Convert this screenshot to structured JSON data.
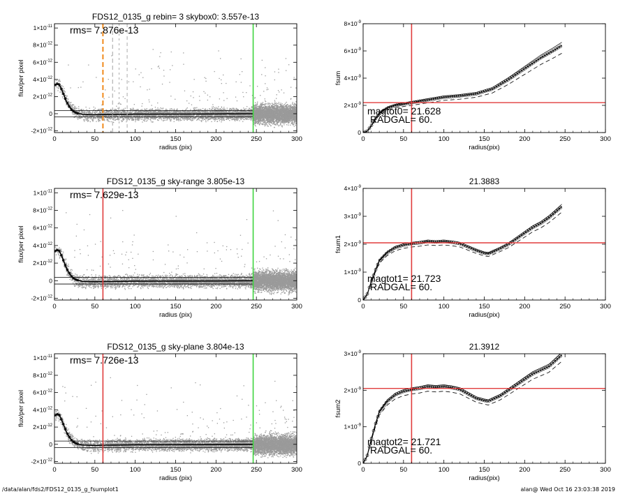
{
  "colors": {
    "data": "#000000",
    "scatter": "#9a9a9a",
    "red": "#e03c3c",
    "orange": "#f08a1c",
    "green": "#3ed53e"
  },
  "footer": {
    "left": "/data/alan/fds2/FDS12_0135_g_fsumplot1",
    "right": "alan@  Wed Oct 16 23:03:38 2019"
  },
  "chart_data": [
    {
      "type": "scatter",
      "title": "FDS12_0135_g rebin= 3    skybox0:  3.557e-13",
      "annotation": "rms= 7.876e-13",
      "xlabel": "radius (pix)",
      "ylabel": "flux/per pixel",
      "xlim": [
        0,
        300
      ],
      "ylim": [
        -2.2e-12,
        1.05e-11
      ],
      "xticks": [
        "0",
        "50",
        "100",
        "150",
        "200",
        "250",
        "300"
      ],
      "yticks": [
        {
          "v": -2e-12,
          "m": "-2",
          "e": "-12"
        },
        {
          "v": 0,
          "m": "0",
          "e": ""
        },
        {
          "v": 2e-12,
          "m": "2",
          "e": "-12"
        },
        {
          "v": 4e-12,
          "m": "4",
          "e": "-12"
        },
        {
          "v": 6e-12,
          "m": "6",
          "e": "-12"
        },
        {
          "v": 8e-12,
          "m": "8",
          "e": "-12"
        },
        {
          "v": 1e-11,
          "m": "1",
          "e": "-11"
        }
      ],
      "yformat": "x10",
      "profile": {
        "x": [
          0,
          3,
          6,
          9,
          12,
          15,
          18,
          21,
          24,
          27,
          30,
          35,
          40,
          50,
          60,
          80,
          100,
          150,
          200,
          246
        ],
        "y": [
          3.3e-12,
          3.5e-12,
          3.4e-12,
          2.8e-12,
          2.1e-12,
          1.4e-12,
          9e-13,
          5e-13,
          2.5e-13,
          1e-13,
          2e-14,
          -8e-14,
          -1e-13,
          -1.2e-13,
          -1e-13,
          -8e-14,
          -5e-14,
          -4e-14,
          -3e-14,
          0
        ]
      },
      "hlines": [
        3.557e-13,
        -3.557e-13
      ],
      "vlines": [
        {
          "x": 60,
          "color": "#f08a1c",
          "dash": "7,4",
          "width": 2
        },
        {
          "x": 72,
          "color": "#b8b8b8",
          "dash": "6,4",
          "width": 1.3
        },
        {
          "x": 80,
          "color": "#b8b8b8",
          "dash": "3,4",
          "width": 1.2
        },
        {
          "x": 90,
          "color": "#b8b8b8",
          "dash": "5,4",
          "width": 1.2
        },
        {
          "x": 246,
          "color": "#3ed53e",
          "dash": "",
          "width": 1.6
        }
      ],
      "scatter_seed": 11
    },
    {
      "type": "line",
      "title": "",
      "annotation": [
        "magtot0=  21.628",
        "RADGAL=    60."
      ],
      "xlabel": "radius(pix)",
      "ylabel": "fsum",
      "xlim": [
        0,
        300
      ],
      "ylim": [
        0,
        8e-09
      ],
      "xticks": [
        "0",
        "50",
        "100",
        "150",
        "200",
        "250",
        "300"
      ],
      "yticks": [
        {
          "v": 0,
          "m": "0",
          "e": ""
        },
        {
          "v": 2e-09,
          "m": "2",
          "e": "-9"
        },
        {
          "v": 4e-09,
          "m": "4",
          "e": "-9"
        },
        {
          "v": 6e-09,
          "m": "6",
          "e": "-9"
        },
        {
          "v": 8e-09,
          "m": "8",
          "e": "-9"
        }
      ],
      "yformat": "x10",
      "series": [
        {
          "x": [
            0,
            5,
            10,
            15,
            20,
            30,
            40,
            50,
            60,
            80,
            100,
            120,
            140,
            160,
            180,
            200,
            220,
            235,
            246
          ],
          "y": [
            0,
            1e-10,
            5e-10,
            1e-09,
            1.4e-09,
            1.8e-09,
            2e-09,
            2.1e-09,
            2.2e-09,
            2.4e-09,
            2.6e-09,
            2.7e-09,
            2.85e-09,
            3.2e-09,
            3.9e-09,
            4.7e-09,
            5.5e-09,
            6e-09,
            6.4e-09
          ]
        }
      ],
      "band": 0.09,
      "hline": 2.2e-09,
      "vline": 60
    },
    {
      "type": "scatter",
      "title": "FDS12_0135_g sky-range  3.805e-13",
      "annotation": "rms= 7.629e-13",
      "xlabel": "radius (pix)",
      "ylabel": "flux/per pixel",
      "xlim": [
        0,
        300
      ],
      "ylim": [
        -2.2e-12,
        1.05e-11
      ],
      "xticks": [
        "0",
        "50",
        "100",
        "150",
        "200",
        "250",
        "300"
      ],
      "yticks": [
        {
          "v": -2e-12,
          "m": "-2",
          "e": "-12"
        },
        {
          "v": 0,
          "m": "0",
          "e": ""
        },
        {
          "v": 2e-12,
          "m": "2",
          "e": "-12"
        },
        {
          "v": 4e-12,
          "m": "4",
          "e": "-12"
        },
        {
          "v": 6e-12,
          "m": "6",
          "e": "-12"
        },
        {
          "v": 8e-12,
          "m": "8",
          "e": "-12"
        },
        {
          "v": 1e-11,
          "m": "1",
          "e": "-11"
        }
      ],
      "yformat": "x10",
      "profile": {
        "x": [
          0,
          3,
          6,
          9,
          12,
          15,
          18,
          21,
          24,
          27,
          30,
          35,
          40,
          50,
          60,
          80,
          100,
          150,
          200,
          246
        ],
        "y": [
          3.3e-12,
          3.5e-12,
          3.4e-12,
          2.8e-12,
          2.1e-12,
          1.4e-12,
          9e-13,
          5e-13,
          2.5e-13,
          1e-13,
          2e-14,
          -8e-14,
          -1e-13,
          -1.2e-13,
          -1e-13,
          -8e-14,
          -5e-14,
          -4e-14,
          -3e-14,
          0
        ]
      },
      "hlines": [
        3.805e-13,
        -3.805e-13
      ],
      "vlines": [
        {
          "x": 60,
          "color": "#e03c3c",
          "dash": "",
          "width": 1.6
        },
        {
          "x": 246,
          "color": "#3ed53e",
          "dash": "",
          "width": 1.6
        }
      ],
      "scatter_seed": 23
    },
    {
      "type": "line",
      "title": "21.3883",
      "annotation": [
        "magtot1=  21.723",
        "RADGAL=    60."
      ],
      "xlabel": "radius(pix)",
      "ylabel": "fsum1",
      "xlim": [
        0,
        300
      ],
      "ylim": [
        0,
        4e-09
      ],
      "xticks": [
        "0",
        "50",
        "100",
        "150",
        "200",
        "250",
        "300"
      ],
      "yticks": [
        {
          "v": 0,
          "m": "0",
          "e": ""
        },
        {
          "v": 1e-09,
          "m": "1",
          "e": "-9"
        },
        {
          "v": 2e-09,
          "m": "2",
          "e": "-9"
        },
        {
          "v": 3e-09,
          "m": "3",
          "e": "-9"
        },
        {
          "v": 4e-09,
          "m": "4",
          "e": "-9"
        }
      ],
      "yformat": "x10",
      "series": [
        {
          "x": [
            0,
            5,
            10,
            15,
            20,
            30,
            40,
            50,
            60,
            70,
            80,
            90,
            100,
            110,
            120,
            130,
            140,
            150,
            155,
            160,
            170,
            180,
            190,
            200,
            210,
            220,
            230,
            240,
            246
          ],
          "y": [
            0,
            2e-10,
            6.5e-10,
            1.05e-09,
            1.4e-09,
            1.7e-09,
            1.88e-09,
            1.97e-09,
            2.02e-09,
            2.05e-09,
            2.1e-09,
            2.08e-09,
            2.1e-09,
            2.07e-09,
            2.02e-09,
            1.9e-09,
            1.78e-09,
            1.68e-09,
            1.66e-09,
            1.72e-09,
            1.85e-09,
            2e-09,
            2.2e-09,
            2.4e-09,
            2.6e-09,
            2.75e-09,
            2.95e-09,
            3.2e-09,
            3.35e-09
          ]
        }
      ],
      "band": 0.06,
      "hline": 2.05e-09,
      "vline": 60
    },
    {
      "type": "scatter",
      "title": "FDS12_0135_g sky-plane  3.804e-13",
      "annotation": "rms= 7.726e-13",
      "xlabel": "radius (pix)",
      "ylabel": "flux/per pixel",
      "xlim": [
        0,
        300
      ],
      "ylim": [
        -2.2e-12,
        1.05e-11
      ],
      "xticks": [
        "0",
        "50",
        "100",
        "150",
        "200",
        "250",
        "300"
      ],
      "yticks": [
        {
          "v": -2e-12,
          "m": "-2",
          "e": "-12"
        },
        {
          "v": 0,
          "m": "0",
          "e": ""
        },
        {
          "v": 2e-12,
          "m": "2",
          "e": "-12"
        },
        {
          "v": 4e-12,
          "m": "4",
          "e": "-12"
        },
        {
          "v": 6e-12,
          "m": "6",
          "e": "-12"
        },
        {
          "v": 8e-12,
          "m": "8",
          "e": "-12"
        },
        {
          "v": 1e-11,
          "m": "1",
          "e": "-11"
        }
      ],
      "yformat": "x10",
      "profile": {
        "x": [
          0,
          3,
          6,
          9,
          12,
          15,
          18,
          21,
          24,
          27,
          30,
          35,
          40,
          50,
          60,
          80,
          100,
          150,
          200,
          246
        ],
        "y": [
          3.3e-12,
          3.5e-12,
          3.4e-12,
          2.8e-12,
          2.1e-12,
          1.4e-12,
          9e-13,
          5e-13,
          2.5e-13,
          1e-13,
          2e-14,
          -8e-14,
          -1e-13,
          -1.2e-13,
          -1e-13,
          -8e-14,
          -5e-14,
          -4e-14,
          -3e-14,
          0
        ]
      },
      "hlines": [
        3.804e-13,
        -3.804e-13
      ],
      "vlines": [
        {
          "x": 60,
          "color": "#e03c3c",
          "dash": "",
          "width": 1.6
        },
        {
          "x": 246,
          "color": "#3ed53e",
          "dash": "",
          "width": 1.6
        }
      ],
      "scatter_seed": 37
    },
    {
      "type": "line",
      "title": "21.3912",
      "annotation": [
        "magtot2=  21.721",
        "RADGAL=    60."
      ],
      "xlabel": "radius(pix)",
      "ylabel": "fsum2",
      "xlim": [
        0,
        300
      ],
      "ylim": [
        0,
        3e-09
      ],
      "xticks": [
        "0",
        "50",
        "100",
        "150",
        "200",
        "250",
        "300"
      ],
      "yticks": [
        {
          "v": 0,
          "m": "0",
          "e": ""
        },
        {
          "v": 1e-09,
          "m": "1",
          "e": "-9"
        },
        {
          "v": 2e-09,
          "m": "2",
          "e": "-9"
        },
        {
          "v": 3e-09,
          "m": "3",
          "e": "-9"
        }
      ],
      "yformat": "x10",
      "series": [
        {
          "x": [
            0,
            5,
            10,
            15,
            20,
            30,
            40,
            50,
            60,
            70,
            80,
            90,
            100,
            110,
            120,
            130,
            140,
            150,
            155,
            160,
            170,
            180,
            190,
            200,
            210,
            220,
            230,
            240,
            246
          ],
          "y": [
            0,
            2e-10,
            6.5e-10,
            1.05e-09,
            1.4e-09,
            1.7e-09,
            1.88e-09,
            1.97e-09,
            2.02e-09,
            2.05e-09,
            2.1e-09,
            2.08e-09,
            2.1e-09,
            2.07e-09,
            2.02e-09,
            1.9e-09,
            1.78e-09,
            1.72e-09,
            1.7e-09,
            1.75e-09,
            1.85e-09,
            2e-09,
            2.15e-09,
            2.3e-09,
            2.45e-09,
            2.55e-09,
            2.65e-09,
            2.85e-09,
            2.97e-09
          ]
        }
      ],
      "band": 0.06,
      "hline": 2.05e-09,
      "vline": 60
    }
  ]
}
